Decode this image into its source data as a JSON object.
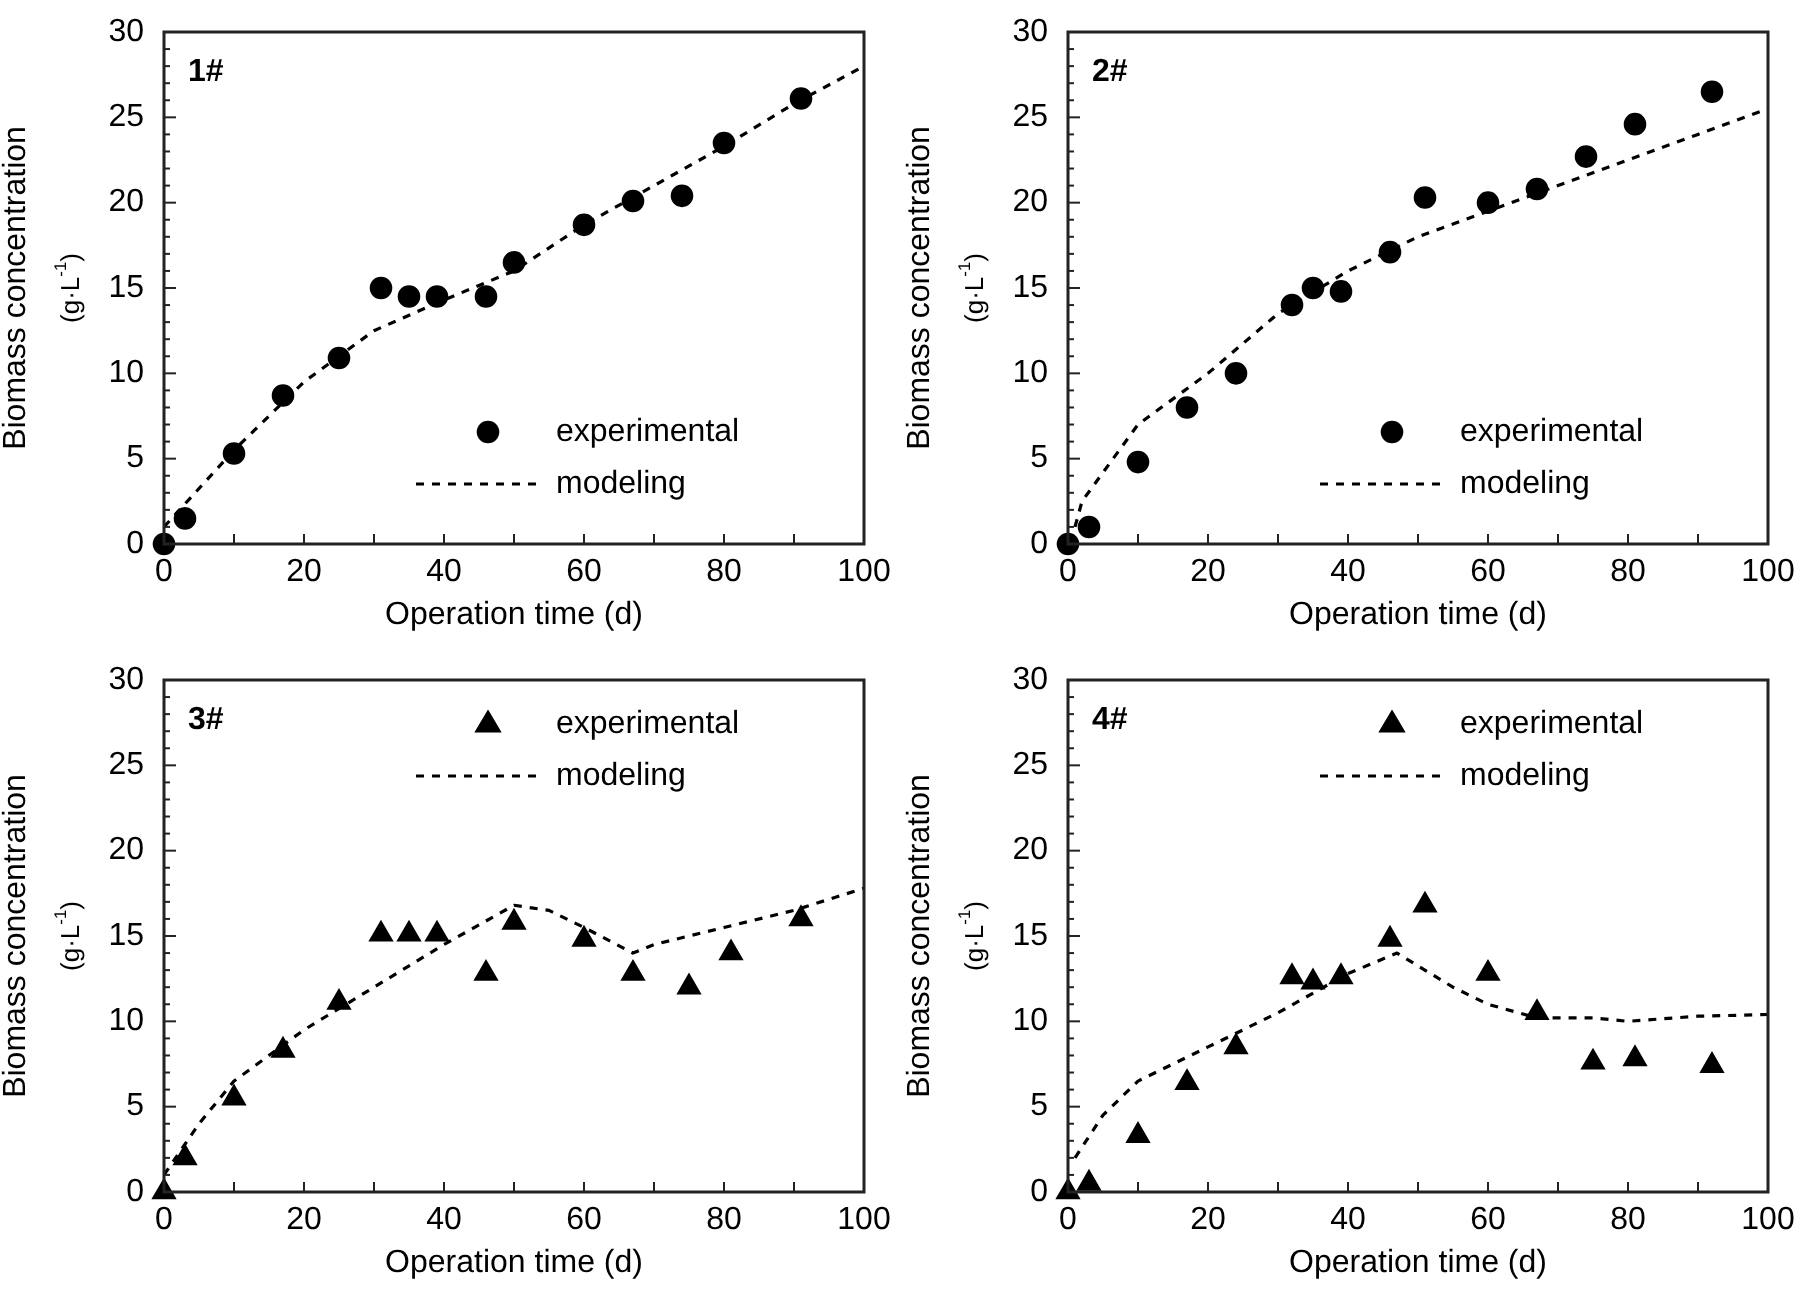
{
  "chart_data": [
    {
      "type": "scatter",
      "title": "1#",
      "xlabel": "Operation time (d)",
      "ylabel": "Biomass concentration\n(g·L$^{-1}$)",
      "xlim": [
        0,
        100
      ],
      "ylim": [
        0,
        30
      ],
      "xticks": [
        0,
        {
          "value": 10,
          "label": null
        },
        20,
        {
          "value": 30,
          "label": null
        },
        40,
        {
          "value": 50,
          "label": null
        },
        60,
        {
          "value": 70,
          "label": null
        },
        80,
        {
          "value": 90,
          "label": null
        },
        100
      ],
      "yticks": [
        0,
        5,
        10,
        15,
        20,
        25,
        30
      ],
      "grid": false,
      "legend": "bottom right",
      "series": [
        {
          "name": "experimental",
          "type": "scatter",
          "marker": "circle",
          "color": "#000000",
          "x": [
            0,
            3,
            10,
            17,
            25,
            31,
            35,
            39,
            46,
            50,
            60,
            67,
            74,
            80,
            91
          ],
          "values": [
            0,
            1.5,
            5.3,
            8.7,
            10.9,
            15,
            14.5,
            14.5,
            14.5,
            16.5,
            18.7,
            20.1,
            20.4,
            23.5,
            26.1
          ]
        },
        {
          "name": "modeling",
          "type": "line",
          "marker": "none",
          "line_style": "dashed",
          "color": "#000000",
          "x": [
            0,
            10,
            20,
            30,
            40,
            50,
            60,
            70,
            80,
            90,
            100
          ],
          "values": [
            1,
            5.5,
            9.5,
            12.5,
            14.3,
            16,
            18.7,
            21,
            23.3,
            25.8,
            28
          ]
        }
      ]
    },
    {
      "type": "scatter",
      "title": "2#",
      "xlabel": "Operation time (d)",
      "ylabel": "Biomass concentration\n(g·L$^{-1}$)",
      "xlim": [
        0,
        100
      ],
      "ylim": [
        0,
        30
      ],
      "xticks": [
        0,
        {
          "value": 10,
          "label": null
        },
        20,
        {
          "value": 30,
          "label": null
        },
        40,
        {
          "value": 50,
          "label": null
        },
        60,
        {
          "value": 70,
          "label": null
        },
        80,
        {
          "value": 90,
          "label": null
        },
        100
      ],
      "yticks": [
        0,
        5,
        10,
        15,
        20,
        25,
        30
      ],
      "grid": false,
      "legend": "bottom right",
      "series": [
        {
          "name": "experimental",
          "type": "scatter",
          "marker": "circle",
          "color": "#000000",
          "x": [
            0,
            3,
            10,
            17,
            24,
            32,
            35,
            39,
            46,
            51,
            60,
            67,
            74,
            81,
            92
          ],
          "values": [
            0,
            1,
            4.8,
            8,
            10,
            14,
            15,
            14.8,
            17.1,
            20.3,
            20,
            20.8,
            22.7,
            24.6,
            26.5
          ]
        },
        {
          "name": "modeling",
          "type": "line",
          "marker": "none",
          "line_style": "dashed",
          "color": "#000000",
          "x": [
            1,
            2,
            10,
            20,
            30,
            40,
            50,
            60,
            70,
            80,
            90,
            100
          ],
          "values": [
            1,
            2.5,
            7,
            10,
            13.5,
            16,
            18,
            19.5,
            21,
            22.5,
            24,
            25.5
          ]
        }
      ]
    },
    {
      "type": "scatter",
      "title": "3#",
      "xlabel": "Operation time (d)",
      "ylabel": "Biomass concentration\n(g·L$^{-1}$)",
      "xlim": [
        0,
        100
      ],
      "ylim": [
        0,
        30
      ],
      "xticks": [
        0,
        {
          "value": 10,
          "label": null
        },
        20,
        {
          "value": 30,
          "label": null
        },
        40,
        {
          "value": 50,
          "label": null
        },
        60,
        {
          "value": 70,
          "label": null
        },
        80,
        {
          "value": 90,
          "label": null
        },
        100
      ],
      "yticks": [
        0,
        5,
        10,
        15,
        20,
        25,
        30
      ],
      "grid": false,
      "legend": "top right",
      "series": [
        {
          "name": "experimental",
          "type": "scatter",
          "marker": "triangle",
          "color": "#000000",
          "x": [
            0,
            3,
            10,
            17,
            25,
            31,
            35,
            39,
            46,
            50,
            60,
            67,
            75,
            81,
            91
          ],
          "values": [
            0,
            2,
            5.5,
            8.3,
            11.1,
            15.1,
            15.1,
            15.1,
            12.8,
            15.8,
            14.8,
            12.8,
            12,
            14,
            16
          ]
        },
        {
          "name": "modeling",
          "type": "line",
          "marker": "none",
          "line_style": "dashed",
          "color": "#000000",
          "x": [
            0,
            5,
            10,
            20,
            30,
            40,
            50,
            55,
            60,
            67,
            70,
            80,
            90,
            100
          ],
          "values": [
            1,
            4,
            6.5,
            9.5,
            12,
            14.5,
            16.8,
            16.5,
            15.5,
            14,
            14.5,
            15.5,
            16.5,
            17.8
          ]
        }
      ]
    },
    {
      "type": "scatter",
      "title": "4#",
      "xlabel": "Operation time (d)",
      "ylabel": "Biomass concentration\n(g·L$^{-1}$)",
      "xlim": [
        0,
        100
      ],
      "ylim": [
        0,
        30
      ],
      "xticks": [
        0,
        {
          "value": 10,
          "label": null
        },
        20,
        {
          "value": 30,
          "label": null
        },
        40,
        {
          "value": 50,
          "label": null
        },
        60,
        {
          "value": 70,
          "label": null
        },
        80,
        {
          "value": 90,
          "label": null
        },
        100
      ],
      "yticks": [
        0,
        5,
        10,
        15,
        20,
        25,
        30
      ],
      "grid": false,
      "legend": "top right",
      "series": [
        {
          "name": "experimental",
          "type": "scatter",
          "marker": "triangle",
          "color": "#000000",
          "x": [
            0,
            3,
            10,
            17,
            24,
            32,
            35,
            39,
            46,
            51,
            60,
            67,
            75,
            81,
            92
          ],
          "values": [
            0,
            0.5,
            3.3,
            6.4,
            8.5,
            12.6,
            12.3,
            12.6,
            14.8,
            16.8,
            12.8,
            10.5,
            7.6,
            7.8,
            7.4
          ]
        },
        {
          "name": "modeling",
          "type": "line",
          "marker": "none",
          "line_style": "dashed",
          "color": "#000000",
          "x": [
            1,
            5,
            10,
            20,
            30,
            40,
            47,
            55,
            60,
            67,
            75,
            80,
            90,
            100
          ],
          "values": [
            2,
            4.5,
            6.5,
            8.5,
            10.5,
            12.8,
            14,
            12,
            11,
            10.2,
            10.2,
            10,
            10.3,
            10.4
          ]
        }
      ]
    }
  ]
}
